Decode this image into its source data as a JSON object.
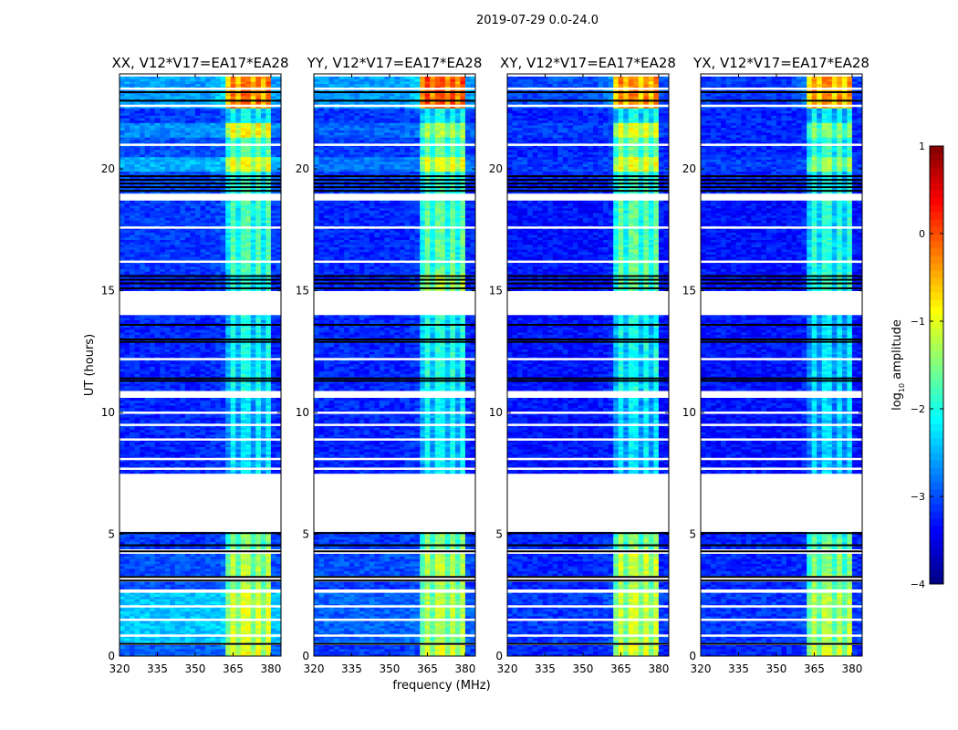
{
  "chart_data": {
    "type": "heatmap",
    "suptitle": "2019-07-29 0.0-24.0",
    "ylabel": "UT (hours)",
    "xlabel": "frequency (MHz)",
    "xlim": [
      320,
      384
    ],
    "ylim": [
      0,
      23.9
    ],
    "xticks": [
      "320",
      "335",
      "350",
      "365",
      "380"
    ],
    "xtick_values": [
      320,
      335,
      350,
      365,
      380
    ],
    "yticks": [
      "0",
      "5",
      "10",
      "15",
      "20"
    ],
    "ytick_values": [
      0,
      5,
      10,
      15,
      20
    ],
    "panels": [
      {
        "pol": "XX",
        "title": "XX, V12*V17=EA17*EA28"
      },
      {
        "pol": "YY",
        "title": "YY, V12*V17=EA17*EA28"
      },
      {
        "pol": "XY",
        "title": "XY, V12*V17=EA17*EA28"
      },
      {
        "pol": "YX",
        "title": "YX, V12*V17=EA17*EA28"
      }
    ],
    "rfi_band_mhz": [
      362,
      379
    ],
    "segments": [
      {
        "start": 0.0,
        "end": 0.45,
        "bg": {
          "XX": -2.9,
          "YY": -3.1,
          "XY": -3.2,
          "YX": -3.2
        },
        "band": {
          "XX": -0.9,
          "YY": -1.0,
          "XY": -1.0,
          "YX": -1.0
        }
      },
      {
        "start": 0.55,
        "end": 2.6,
        "bg": {
          "XX": -2.4,
          "YY": -2.9,
          "XY": -3.1,
          "YX": -3.1
        },
        "band": {
          "XX": -1.0,
          "YY": -1.2,
          "XY": -1.1,
          "YX": -1.2
        }
      },
      {
        "start": 2.75,
        "end": 3.05,
        "bg": {
          "XX": -3.0,
          "YY": -3.1,
          "XY": -3.2,
          "YX": -3.2
        },
        "band": {
          "XX": -1.3,
          "YY": -1.3,
          "XY": -1.3,
          "YX": -1.4
        }
      },
      {
        "start": 3.3,
        "end": 4.2,
        "bg": {
          "XX": -3.0,
          "YY": -3.0,
          "XY": -3.2,
          "YX": -3.2
        },
        "band": {
          "XX": -1.2,
          "YY": -1.2,
          "XY": -1.1,
          "YX": -1.4
        }
      },
      {
        "start": 4.4,
        "end": 5.1,
        "bg": {
          "XX": -3.1,
          "YY": -3.1,
          "XY": -3.2,
          "YX": -3.2
        },
        "band": {
          "XX": -1.4,
          "YY": -1.4,
          "XY": -1.4,
          "YX": -1.6
        }
      },
      {
        "start": 7.5,
        "end": 10.6,
        "bg": {
          "XX": -3.2,
          "YY": -3.2,
          "XY": -3.3,
          "YX": -3.3
        },
        "band": {
          "XX": -2.2,
          "YY": -2.1,
          "XY": -2.2,
          "YX": -2.3
        }
      },
      {
        "start": 10.9,
        "end": 14.0,
        "bg": {
          "XX": -3.2,
          "YY": -3.2,
          "XY": -3.3,
          "YX": -3.3
        },
        "band": {
          "XX": -2.0,
          "YY": -1.9,
          "XY": -2.0,
          "YX": -2.2
        }
      },
      {
        "start": 15.0,
        "end": 15.7,
        "bg": {
          "XX": -3.2,
          "YY": -3.2,
          "XY": -3.3,
          "YX": -3.3
        },
        "band": {
          "XX": -1.9,
          "YY": -1.2,
          "XY": -1.6,
          "YX": -1.8
        }
      },
      {
        "start": 15.7,
        "end": 18.7,
        "bg": {
          "XX": -3.1,
          "YY": -3.2,
          "XY": -3.3,
          "YX": -3.3
        },
        "band": {
          "XX": -1.7,
          "YY": -1.6,
          "XY": -1.6,
          "YX": -1.9
        }
      },
      {
        "start": 19.0,
        "end": 19.9,
        "bg": {
          "XX": -3.0,
          "YY": -3.1,
          "XY": -3.2,
          "YX": -3.2
        },
        "band": {
          "XX": -1.8,
          "YY": -1.8,
          "XY": -1.8,
          "YX": -2.0
        }
      },
      {
        "start": 19.9,
        "end": 20.5,
        "bg": {
          "XX": -2.5,
          "YY": -2.8,
          "XY": -3.1,
          "YX": -3.1
        },
        "band": {
          "XX": -0.9,
          "YY": -0.9,
          "XY": -0.9,
          "YX": -1.3
        }
      },
      {
        "start": 20.5,
        "end": 21.3,
        "bg": {
          "XX": -3.0,
          "YY": -3.1,
          "XY": -3.2,
          "YX": -3.2
        },
        "band": {
          "XX": -1.6,
          "YY": -1.6,
          "XY": -1.5,
          "YX": -1.8
        }
      },
      {
        "start": 21.3,
        "end": 21.9,
        "bg": {
          "XX": -2.7,
          "YY": -2.9,
          "XY": -3.1,
          "YX": -3.2
        },
        "band": {
          "XX": -0.8,
          "YY": -1.2,
          "XY": -0.9,
          "YX": -1.4
        }
      },
      {
        "start": 21.9,
        "end": 22.5,
        "bg": {
          "XX": -3.1,
          "YY": -3.1,
          "XY": -3.2,
          "YX": -3.2
        },
        "band": {
          "XX": -2.0,
          "YY": -2.0,
          "XY": -2.0,
          "YX": -2.1
        }
      },
      {
        "start": 22.5,
        "end": 23.9,
        "bg": {
          "XX": -2.6,
          "YY": -2.6,
          "XY": -3.0,
          "YX": -3.1
        },
        "band": {
          "XX": -0.1,
          "YY": 0.1,
          "XY": -0.2,
          "YX": -0.3
        }
      }
    ],
    "flagged_black_lines_ut": [
      0.5,
      3.1,
      3.25,
      4.3,
      4.55,
      5.05,
      11.3,
      11.4,
      12.9,
      13.0,
      13.6,
      15.1,
      15.3,
      15.45,
      15.6,
      19.1,
      19.25,
      19.4,
      19.55,
      19.7,
      22.8,
      23.15
    ],
    "white_lines_ut": [
      0.85,
      1.5,
      2.05,
      7.7,
      8.1,
      8.9,
      9.5,
      10.0,
      12.2,
      16.2,
      17.6,
      21.0,
      22.6,
      23.3,
      23.85
    ],
    "colorbar": {
      "label": "log",
      "label_sub": "10",
      "label_rest": " amplitude",
      "vmin": -4,
      "vmax": 1,
      "ticks": [
        "1",
        "0",
        "−1",
        "−2",
        "−3",
        "−4"
      ],
      "tick_values": [
        1,
        0,
        -1,
        -2,
        -3,
        -4
      ],
      "colormap": "jet"
    }
  }
}
